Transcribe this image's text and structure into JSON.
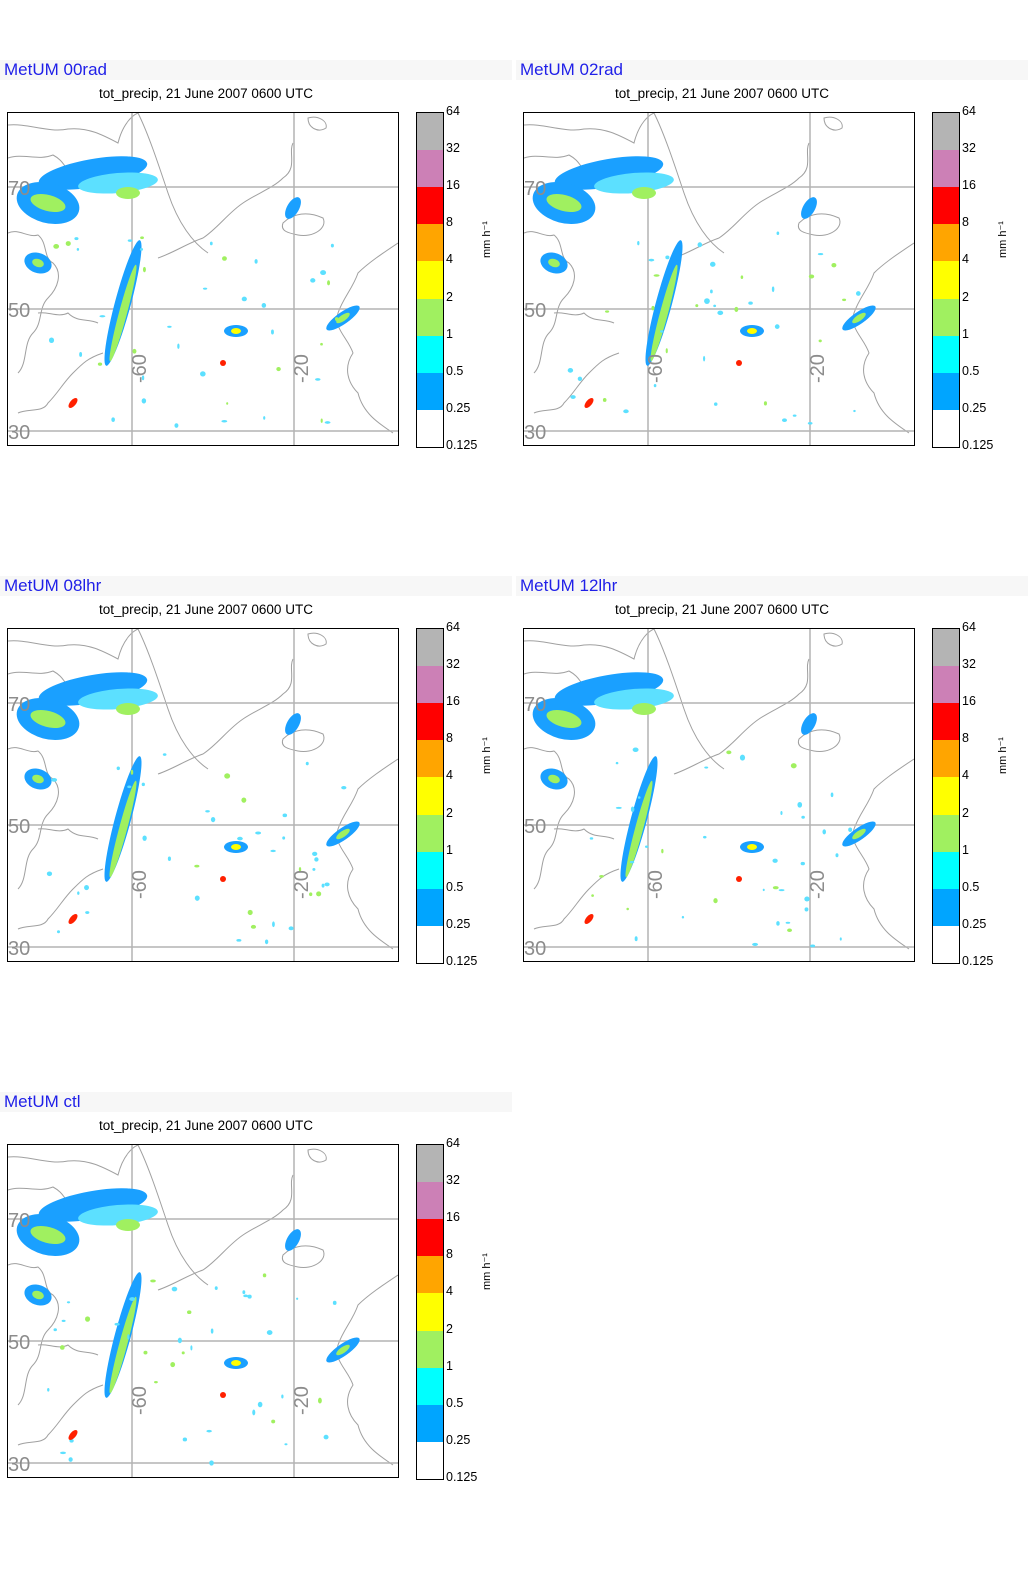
{
  "panels": [
    {
      "heading": "MetUM 00rad",
      "subtitle": "tot_precip, 21 June 2007 0600 UTC"
    },
    {
      "heading": "MetUM 02rad",
      "subtitle": "tot_precip, 21 June 2007 0600 UTC"
    },
    {
      "heading": "MetUM 08lhr",
      "subtitle": "tot_precip, 21 June 2007 0600 UTC"
    },
    {
      "heading": "MetUM 12lhr",
      "subtitle": "tot_precip, 21 June 2007 0600 UTC"
    },
    {
      "heading": "MetUM ctl",
      "subtitle": "tot_precip, 21 June 2007 0600 UTC"
    }
  ],
  "map_labels": {
    "lat_70": "70",
    "lat_50": "50",
    "lat_30": "30",
    "lon_m60": "-60",
    "lon_m20": "-20"
  },
  "colorbar": {
    "unit": "mm h⁻¹",
    "ticks": [
      "64",
      "32",
      "16",
      "8",
      "4",
      "2",
      "1",
      "0.5",
      "0.25",
      "0.125"
    ],
    "colors": [
      "#b4b4b4",
      "#cc80b6",
      "#ff0000",
      "#ffa500",
      "#ffff00",
      "#a0f060",
      "#00ffff",
      "#00a5ff",
      "#ffffff"
    ]
  },
  "colors": {
    "heading": "#1f1fe8",
    "coast": "#a0a0a0",
    "grid": "#b4b4b4"
  }
}
